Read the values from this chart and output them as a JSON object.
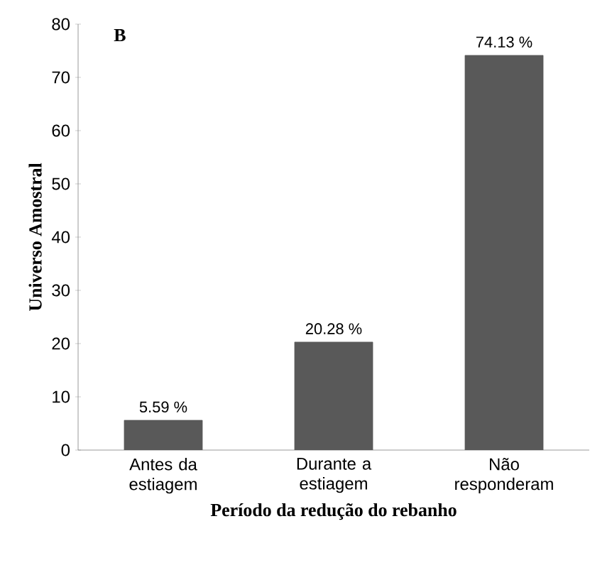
{
  "chart_data": {
    "type": "bar",
    "title": "B",
    "xlabel": "Período da redução do rebanho",
    "ylabel": "Universo Amostral",
    "categories": [
      "Antes da estiagem",
      "Durante a estiagem",
      "Não responderam"
    ],
    "values": [
      5.59,
      20.28,
      74.13
    ],
    "value_labels": [
      "5.59 %",
      "20.28 %",
      "74.13 %"
    ],
    "color": "#595959",
    "ylim": [
      0,
      80
    ],
    "yticks": [
      0,
      10,
      20,
      30,
      40,
      50,
      60,
      70,
      80
    ]
  }
}
